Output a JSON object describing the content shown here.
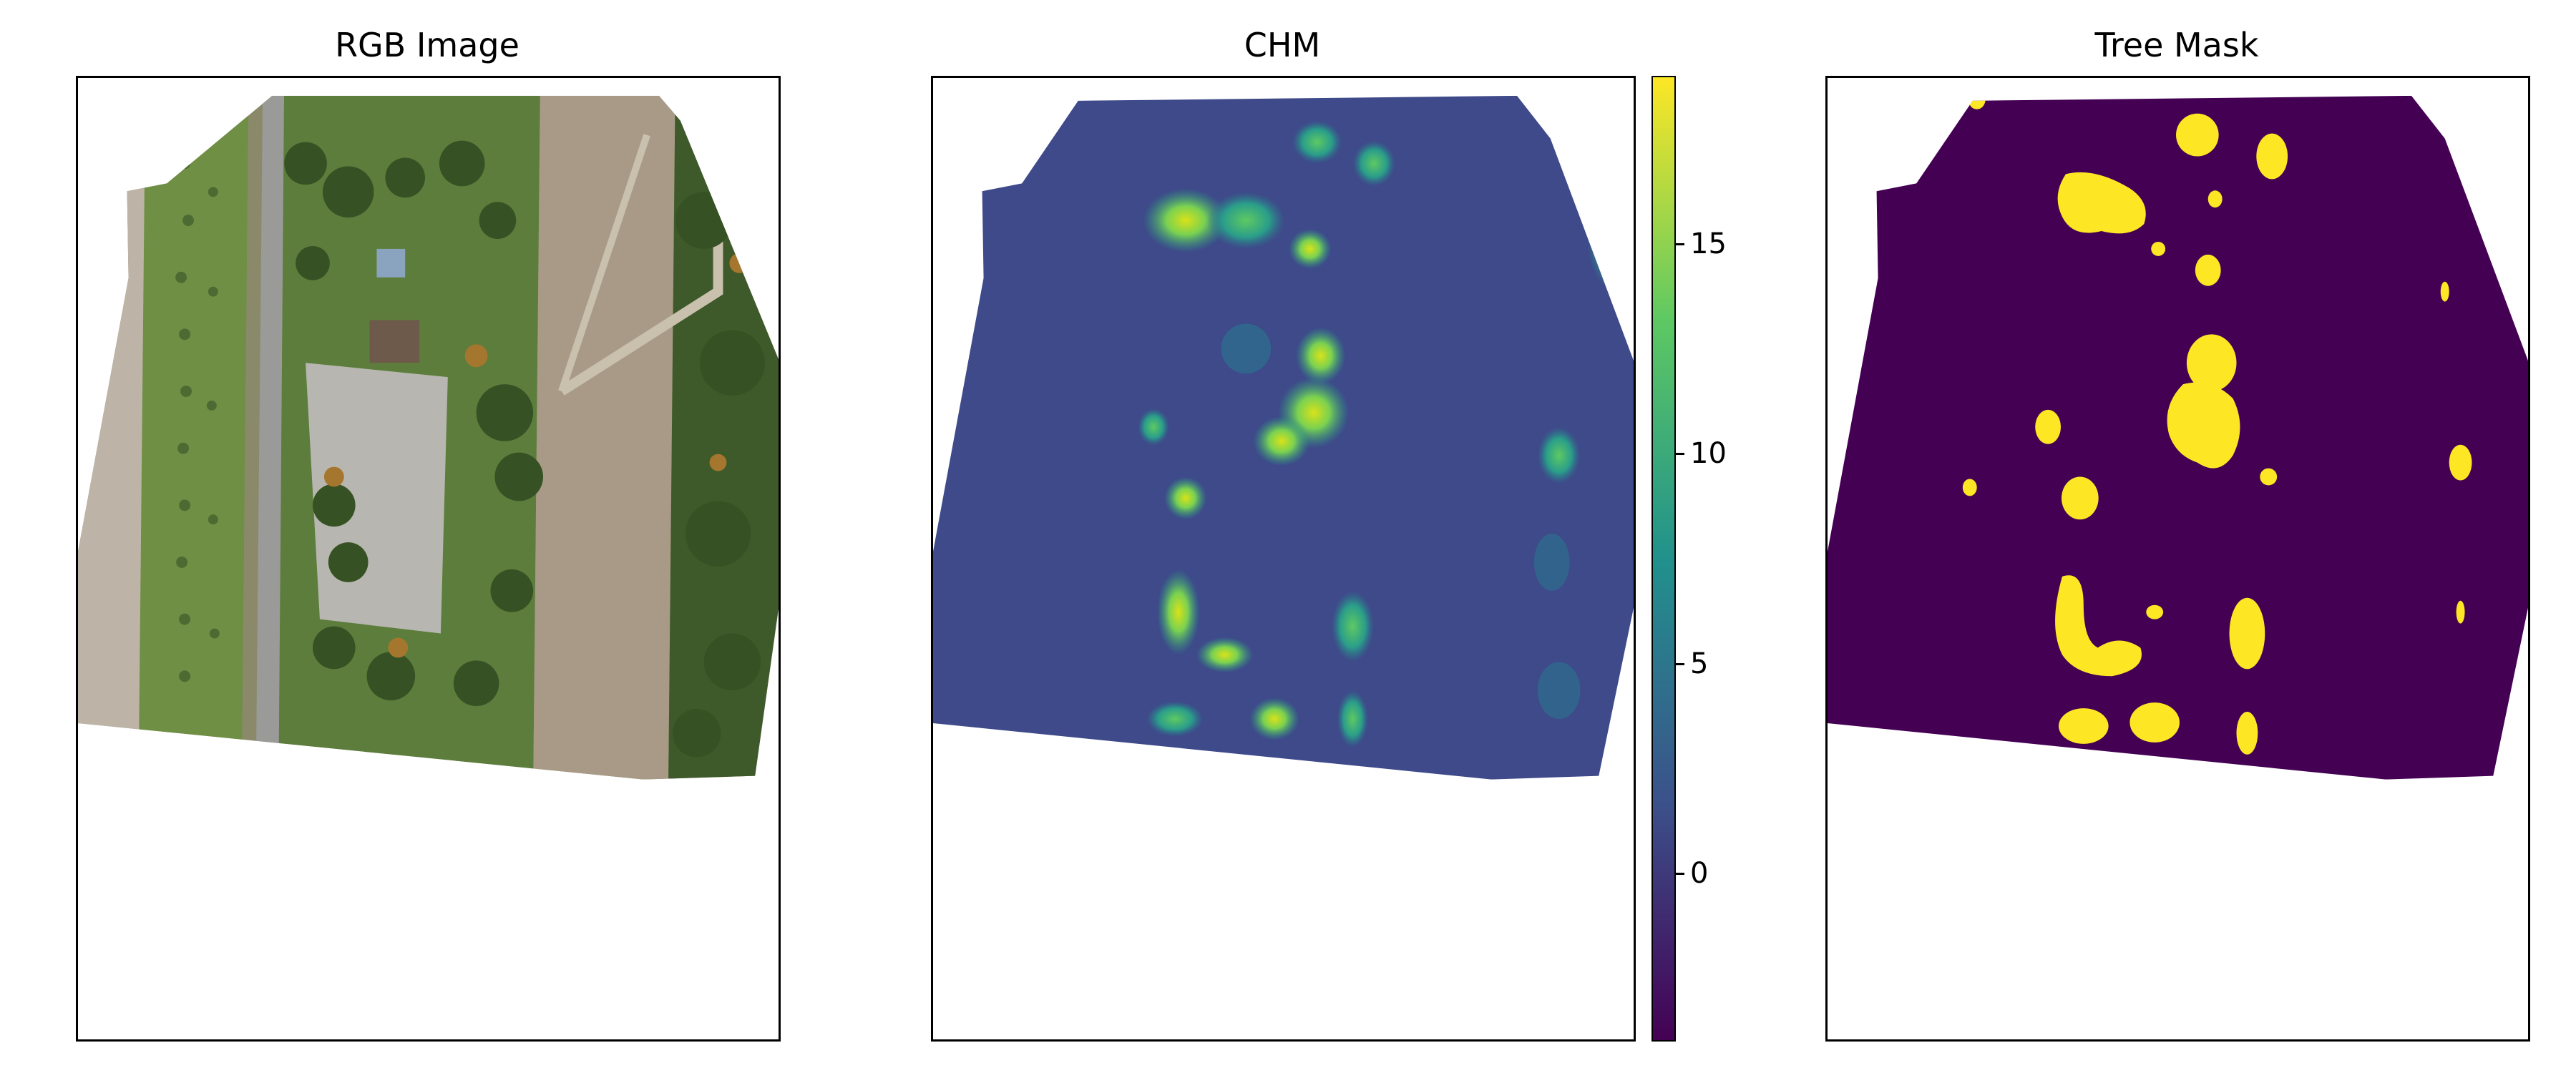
{
  "figure": {
    "panels": [
      {
        "id": "rgb",
        "title": "RGB Image"
      },
      {
        "id": "chm",
        "title": "CHM"
      },
      {
        "id": "mask",
        "title": "Tree Mask"
      }
    ]
  },
  "chart_data": [
    {
      "type": "heatmap",
      "title": "RGB Image",
      "description_values": "aerial orthophoto",
      "axes_ticks": "none"
    },
    {
      "type": "heatmap",
      "title": "CHM",
      "colormap": "viridis",
      "colorbar": {
        "ticks": [
          "15",
          "10",
          "5",
          "0"
        ],
        "tick_values": [
          15,
          10,
          5,
          0
        ],
        "range": [
          -4,
          19
        ],
        "colors": [
          "#440154",
          "#3b528b",
          "#21918c",
          "#5ec962",
          "#fde725"
        ]
      },
      "background_value_color": "#3e4a89",
      "axes_ticks": "none"
    },
    {
      "type": "heatmap",
      "title": "Tree Mask",
      "binary_colors": {
        "no_tree": "#440154",
        "tree": "#fde725"
      },
      "axes_ticks": "none"
    }
  ]
}
